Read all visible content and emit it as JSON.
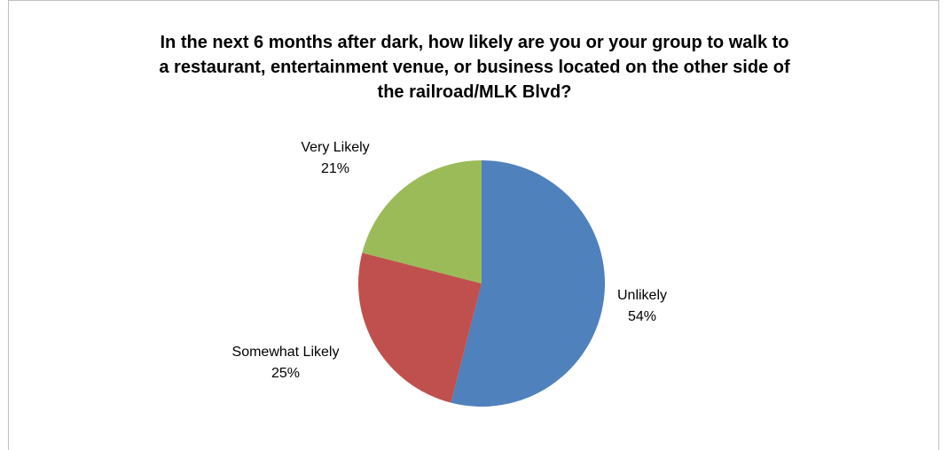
{
  "chart_data": {
    "type": "pie",
    "title_lines": [
      "In the next 6 months after dark, how likely are you or your group to walk to",
      "a restaurant, entertainment venue, or business located on the other side of",
      "the railroad/MLK Blvd?"
    ],
    "slices": [
      {
        "name": "Unlikely",
        "value": 54,
        "value_label": "54%",
        "color": "#4f81bd"
      },
      {
        "name": "Somewhat Likely",
        "value": 25,
        "value_label": "25%",
        "color": "#c0504d"
      },
      {
        "name": "Very Likely",
        "value": 21,
        "value_label": "21%",
        "color": "#9bbb59"
      }
    ],
    "start_angle_deg": 0,
    "direction": "clockwise",
    "legend": "none",
    "data_labels": "outside"
  }
}
